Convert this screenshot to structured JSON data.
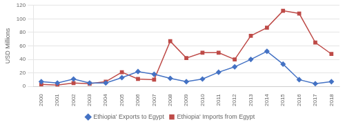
{
  "chart_data": {
    "type": "line",
    "categories": [
      "2000",
      "2001",
      "2002",
      "2003",
      "2004",
      "2005",
      "2006",
      "2007",
      "2008",
      "2009",
      "2010",
      "2011",
      "2012",
      "2013",
      "2014",
      "2015",
      "2016",
      "2017",
      "2018"
    ],
    "series": [
      {
        "name": "Ethiopia' Exports to Egypt",
        "color": "#4472C4",
        "marker": "diamond",
        "values": [
          7,
          5,
          11,
          5,
          5,
          13,
          22,
          18,
          12,
          7,
          11,
          21,
          29,
          40,
          52,
          33,
          10,
          4,
          7
        ]
      },
      {
        "name": "Ethiopia' Imports from Egypt",
        "color": "#BE4B48",
        "marker": "square",
        "values": [
          3,
          2,
          5,
          4,
          7,
          21,
          11,
          10,
          67,
          42,
          50,
          50,
          40,
          75,
          87,
          112,
          108,
          65,
          48
        ]
      }
    ],
    "y_label": "USD Millions",
    "ylim": [
      0,
      120
    ],
    "yticks": [
      0,
      20,
      40,
      60,
      80,
      100,
      120
    ],
    "grid": true,
    "legend": "bottom"
  }
}
